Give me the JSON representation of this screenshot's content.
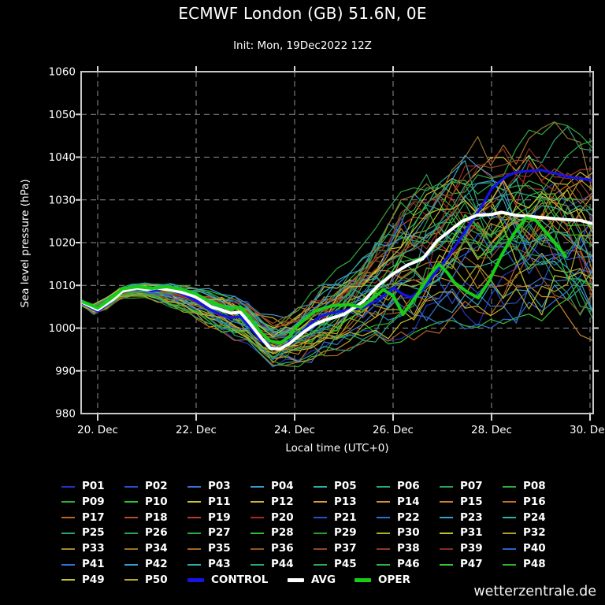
{
  "page": {
    "title": "ECMWF London (GB) 51.6N, 0E",
    "subtitle": "Init: Mon, 19Dec2022 12Z",
    "watermark": "wetterzentrale.de"
  },
  "chart_data": {
    "type": "line",
    "title": "ECMWF London (GB) 51.6N, 0E",
    "subtitle": "Init: Mon, 19Dec2022 12Z",
    "xlabel": "Local time (UTC+0)",
    "ylabel": "Sea level pressure (hPa)",
    "ylim": [
      980,
      1060
    ],
    "y_ticks": [
      "980",
      "990",
      "1000",
      "1010",
      "1020",
      "1030",
      "1040",
      "1050",
      "1060"
    ],
    "x_ticks": [
      {
        "day": 20,
        "label": "20. Dec"
      },
      {
        "day": 22,
        "label": "22. Dec"
      },
      {
        "day": 24,
        "label": "24. Dec"
      },
      {
        "day": 26,
        "label": "26. Dec"
      },
      {
        "day": 28,
        "label": "28. Dec"
      },
      {
        "day": 30,
        "label": "30. Dec"
      }
    ],
    "x_domain_dec_days": [
      19.66,
      30.06
    ],
    "grid": "dashed",
    "legend_position": "bottom",
    "colors": {
      "background": "#000000",
      "frame": "#c8c8c8",
      "grid": "#909090",
      "control": "#1414e6",
      "avg": "#ffffff",
      "oper": "#18cc18"
    },
    "series": [
      {
        "name": "AVG",
        "color": "#ffffff",
        "width": 4,
        "points": [
          [
            19.66,
            1006.2
          ],
          [
            19.8,
            1005.4
          ],
          [
            20.0,
            1004.3
          ],
          [
            20.3,
            1006.6
          ],
          [
            20.5,
            1008.6
          ],
          [
            20.8,
            1009.4
          ],
          [
            21.0,
            1009.0
          ],
          [
            21.2,
            1009.4
          ],
          [
            21.5,
            1008.9
          ],
          [
            21.7,
            1008.4
          ],
          [
            22.0,
            1007.3
          ],
          [
            22.3,
            1005.0
          ],
          [
            22.5,
            1004.3
          ],
          [
            22.7,
            1003.5
          ],
          [
            22.9,
            1003.7
          ],
          [
            23.1,
            1001.0
          ],
          [
            23.3,
            998.0
          ],
          [
            23.5,
            995.3
          ],
          [
            23.7,
            995.1
          ],
          [
            23.9,
            996.4
          ],
          [
            24.0,
            997.4
          ],
          [
            24.2,
            999.2
          ],
          [
            24.4,
            1000.8
          ],
          [
            24.6,
            1001.8
          ],
          [
            24.8,
            1002.5
          ],
          [
            25.0,
            1003.2
          ],
          [
            25.2,
            1004.7
          ],
          [
            25.4,
            1006.3
          ],
          [
            25.7,
            1010.0
          ],
          [
            26.0,
            1012.7
          ],
          [
            26.3,
            1014.8
          ],
          [
            26.6,
            1016.2
          ],
          [
            26.9,
            1020.5
          ],
          [
            27.2,
            1023.2
          ],
          [
            27.4,
            1025.0
          ],
          [
            27.7,
            1026.4
          ],
          [
            28.0,
            1026.6
          ],
          [
            28.2,
            1027.1
          ],
          [
            28.5,
            1026.4
          ],
          [
            28.8,
            1026.1
          ],
          [
            29.0,
            1025.9
          ],
          [
            29.3,
            1025.6
          ],
          [
            29.5,
            1025.4
          ],
          [
            29.8,
            1025.2
          ],
          [
            30.06,
            1024.4
          ]
        ]
      },
      {
        "name": "CONTROL",
        "color": "#1414e6",
        "width": 3.2,
        "points": [
          [
            19.66,
            1005.9
          ],
          [
            19.8,
            1005.1
          ],
          [
            20.0,
            1003.9
          ],
          [
            20.3,
            1006.4
          ],
          [
            20.5,
            1008.8
          ],
          [
            20.8,
            1009.6
          ],
          [
            21.1,
            1008.7
          ],
          [
            21.4,
            1009.2
          ],
          [
            21.7,
            1008.1
          ],
          [
            22.0,
            1006.4
          ],
          [
            22.3,
            1004.2
          ],
          [
            22.5,
            1003.2
          ],
          [
            22.7,
            1002.4
          ],
          [
            22.9,
            1002.7
          ],
          [
            23.1,
            1000.2
          ],
          [
            23.3,
            997.2
          ],
          [
            23.5,
            995.5
          ],
          [
            23.7,
            995.1
          ],
          [
            23.9,
            996.8
          ],
          [
            24.1,
            998.4
          ],
          [
            24.3,
            1000.9
          ],
          [
            24.5,
            1002.6
          ],
          [
            24.7,
            1003.4
          ],
          [
            25.0,
            1004.1
          ],
          [
            25.2,
            1004.6
          ],
          [
            25.4,
            1004.8
          ],
          [
            25.7,
            1006.7
          ],
          [
            26.0,
            1009.4
          ],
          [
            26.2,
            1007.9
          ],
          [
            26.35,
            1007.2
          ],
          [
            26.6,
            1009.0
          ],
          [
            26.9,
            1013.5
          ],
          [
            27.2,
            1018.0
          ],
          [
            27.5,
            1023.4
          ],
          [
            27.8,
            1028.5
          ],
          [
            28.0,
            1032.6
          ],
          [
            28.3,
            1035.5
          ],
          [
            28.5,
            1036.5
          ],
          [
            28.8,
            1036.8
          ],
          [
            29.0,
            1037.0
          ],
          [
            29.3,
            1036.2
          ],
          [
            29.5,
            1035.5
          ],
          [
            29.8,
            1035.0
          ],
          [
            30.06,
            1034.6
          ]
        ]
      },
      {
        "name": "OPER",
        "color": "#18cc18",
        "width": 4,
        "points": [
          [
            19.66,
            1006.3
          ],
          [
            19.8,
            1005.7
          ],
          [
            20.0,
            1004.7
          ],
          [
            20.3,
            1007.2
          ],
          [
            20.5,
            1009.2
          ],
          [
            20.8,
            1009.7
          ],
          [
            21.1,
            1009.3
          ],
          [
            21.4,
            1009.7
          ],
          [
            21.7,
            1009.1
          ],
          [
            22.0,
            1008.0
          ],
          [
            22.3,
            1006.0
          ],
          [
            22.5,
            1005.3
          ],
          [
            22.7,
            1004.5
          ],
          [
            22.9,
            1004.9
          ],
          [
            23.1,
            1002.2
          ],
          [
            23.3,
            999.2
          ],
          [
            23.5,
            997.0
          ],
          [
            23.7,
            996.5
          ],
          [
            23.9,
            998.0
          ],
          [
            24.0,
            999.9
          ],
          [
            24.2,
            1002.0
          ],
          [
            24.4,
            1003.9
          ],
          [
            24.6,
            1004.7
          ],
          [
            24.8,
            1005.3
          ],
          [
            25.1,
            1005.5
          ],
          [
            25.35,
            1004.9
          ],
          [
            25.6,
            1007.0
          ],
          [
            25.8,
            1009.0
          ],
          [
            26.0,
            1007.6
          ],
          [
            26.2,
            1003.2
          ],
          [
            26.5,
            1008.0
          ],
          [
            26.75,
            1012.5
          ],
          [
            26.93,
            1015.0
          ],
          [
            27.1,
            1013.0
          ],
          [
            27.25,
            1010.6
          ],
          [
            27.5,
            1008.5
          ],
          [
            27.73,
            1007.1
          ],
          [
            27.95,
            1011.0
          ],
          [
            28.2,
            1017.0
          ],
          [
            28.45,
            1022.0
          ],
          [
            28.7,
            1025.8
          ],
          [
            28.9,
            1025.2
          ],
          [
            29.1,
            1022.5
          ],
          [
            29.3,
            1019.8
          ],
          [
            29.5,
            1016.8
          ]
        ]
      }
    ],
    "ensemble": {
      "envelope": [
        [
          19.66,
          1005.2,
          1006.8
        ],
        [
          20.0,
          1002.6,
          1005.4
        ],
        [
          20.5,
          1007.0,
          1010.2
        ],
        [
          21.0,
          1007.0,
          1010.6
        ],
        [
          21.5,
          1004.8,
          1010.4
        ],
        [
          22.0,
          1002.0,
          1009.6
        ],
        [
          22.5,
          998.5,
          1009.0
        ],
        [
          23.0,
          996.0,
          1007.5
        ],
        [
          23.5,
          989.6,
          1003.5
        ],
        [
          24.0,
          990.0,
          1005.0
        ],
        [
          24.5,
          992.5,
          1010.0
        ],
        [
          25.0,
          994.0,
          1015.5
        ],
        [
          25.5,
          995.5,
          1022.0
        ],
        [
          26.0,
          996.5,
          1030.0
        ],
        [
          26.5,
          997.0,
          1038.0
        ],
        [
          27.0,
          998.5,
          1044.0
        ],
        [
          27.5,
          999.5,
          1045.5
        ],
        [
          28.0,
          1000.0,
          1046.0
        ],
        [
          28.5,
          1000.0,
          1047.0
        ],
        [
          29.0,
          1000.0,
          1049.0
        ],
        [
          29.5,
          999.0,
          1048.0
        ],
        [
          30.06,
          997.0,
          1045.0
        ]
      ],
      "members": [
        {
          "label": "P01",
          "color": "#2236c3"
        },
        {
          "label": "P02",
          "color": "#2b4ecb"
        },
        {
          "label": "P03",
          "color": "#3a74d0"
        },
        {
          "label": "P04",
          "color": "#3e96cb"
        },
        {
          "label": "P05",
          "color": "#37aca6"
        },
        {
          "label": "P06",
          "color": "#2fa478"
        },
        {
          "label": "P07",
          "color": "#2ea153"
        },
        {
          "label": "P08",
          "color": "#33a93e"
        },
        {
          "label": "P09",
          "color": "#2fb33a"
        },
        {
          "label": "P10",
          "color": "#33c433"
        },
        {
          "label": "P11",
          "color": "#c9c32e"
        },
        {
          "label": "P12",
          "color": "#cdb92c"
        },
        {
          "label": "P13",
          "color": "#cfa42e"
        },
        {
          "label": "P14",
          "color": "#cf952e"
        },
        {
          "label": "P15",
          "color": "#c9842a"
        },
        {
          "label": "P16",
          "color": "#c47426"
        },
        {
          "label": "P17",
          "color": "#bd6524"
        },
        {
          "label": "P18",
          "color": "#b94f28"
        },
        {
          "label": "P19",
          "color": "#b83c30"
        },
        {
          "label": "P20",
          "color": "#a52b26"
        },
        {
          "label": "P21",
          "color": "#2a50cc"
        },
        {
          "label": "P22",
          "color": "#2f6fd2"
        },
        {
          "label": "P23",
          "color": "#38a0c6"
        },
        {
          "label": "P24",
          "color": "#2fb2a6"
        },
        {
          "label": "P25",
          "color": "#2ba379"
        },
        {
          "label": "P26",
          "color": "#2ca455"
        },
        {
          "label": "P27",
          "color": "#2fae3e"
        },
        {
          "label": "P28",
          "color": "#35bb36"
        },
        {
          "label": "P29",
          "color": "#2c9e2e"
        },
        {
          "label": "P30",
          "color": "#b0b028"
        },
        {
          "label": "P31",
          "color": "#c2c232"
        },
        {
          "label": "P32",
          "color": "#b2a02a"
        },
        {
          "label": "P33",
          "color": "#a9862a"
        },
        {
          "label": "P34",
          "color": "#9d712c"
        },
        {
          "label": "P35",
          "color": "#a86426"
        },
        {
          "label": "P36",
          "color": "#8f5626"
        },
        {
          "label": "P37",
          "color": "#94462a"
        },
        {
          "label": "P38",
          "color": "#8c3a28"
        },
        {
          "label": "P39",
          "color": "#842c28"
        },
        {
          "label": "P40",
          "color": "#2f5ecf"
        },
        {
          "label": "P41",
          "color": "#3372d2"
        },
        {
          "label": "P42",
          "color": "#3d9bcb"
        },
        {
          "label": "P43",
          "color": "#32aca8"
        },
        {
          "label": "P44",
          "color": "#2da67c"
        },
        {
          "label": "P45",
          "color": "#2ea757"
        },
        {
          "label": "P46",
          "color": "#33b243"
        },
        {
          "label": "P47",
          "color": "#3bc23b"
        },
        {
          "label": "P48",
          "color": "#35ad31"
        },
        {
          "label": "P49",
          "color": "#c6c232"
        },
        {
          "label": "P50",
          "color": "#bcaa2e"
        }
      ]
    }
  },
  "legend": {
    "specials": [
      {
        "label": "CONTROL",
        "color": "#1414e6"
      },
      {
        "label": "AVG",
        "color": "#ffffff"
      },
      {
        "label": "OPER",
        "color": "#18cc18"
      }
    ]
  }
}
